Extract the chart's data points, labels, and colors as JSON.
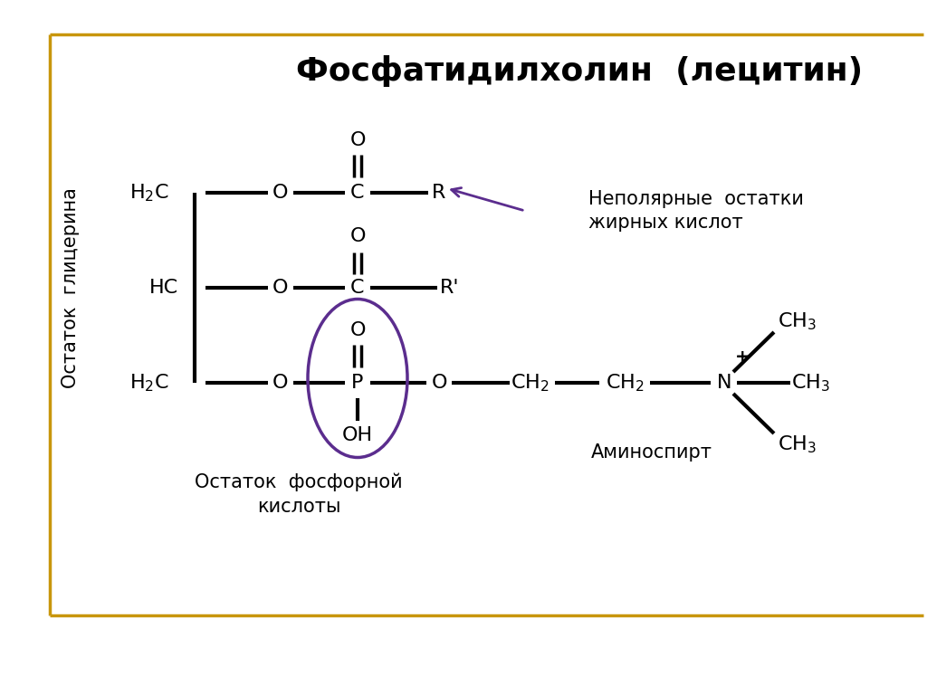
{
  "title": "Фосфатидилхолин  (лецитин)",
  "label_glycerol": "Остаток  глицерина",
  "label_fatty_acids_1": "Неполярные  остатки",
  "label_fatty_acids_2": "жирных кислот",
  "label_phosphate_1": "Остаток  фосфорной",
  "label_phosphate_2": "кислоты",
  "label_aminoalcohol": "Аминоспирт",
  "border_color": "#C8960C",
  "circle_color": "#5B2D8E",
  "arrow_color": "#5B2D8E",
  "text_color": "#000000",
  "bg_color": "#FFFFFF"
}
